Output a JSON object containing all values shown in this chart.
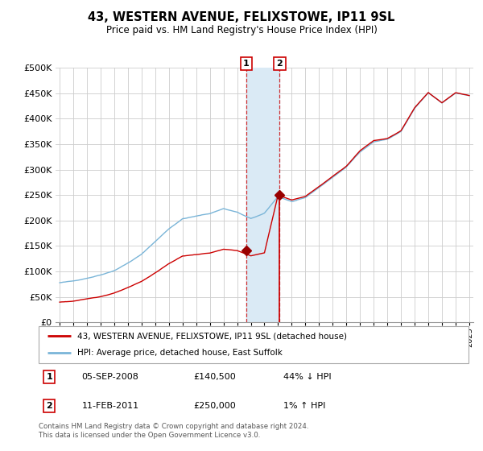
{
  "title": "43, WESTERN AVENUE, FELIXSTOWE, IP11 9SL",
  "subtitle": "Price paid vs. HM Land Registry's House Price Index (HPI)",
  "legend_line1": "43, WESTERN AVENUE, FELIXSTOWE, IP11 9SL (detached house)",
  "legend_line2": "HPI: Average price, detached house, East Suffolk",
  "table_rows": [
    [
      "1",
      "05-SEP-2008",
      "£140,500",
      "44% ↓ HPI"
    ],
    [
      "2",
      "11-FEB-2011",
      "£250,000",
      "1% ↑ HPI"
    ]
  ],
  "footer": "Contains HM Land Registry data © Crown copyright and database right 2024.\nThis data is licensed under the Open Government Licence v3.0.",
  "hpi_color": "#7ab5d8",
  "price_color": "#cc0000",
  "marker_color": "#990000",
  "annotation_bg": "#daeaf5",
  "ylim": [
    0,
    500000
  ],
  "yticks": [
    0,
    50000,
    100000,
    150000,
    200000,
    250000,
    300000,
    350000,
    400000,
    450000,
    500000
  ],
  "ytick_labels": [
    "£0",
    "£50K",
    "£100K",
    "£150K",
    "£200K",
    "£250K",
    "£300K",
    "£350K",
    "£400K",
    "£450K",
    "£500K"
  ],
  "sale1_year": 2008.67,
  "sale1_price": 140500,
  "sale2_year": 2011.12,
  "sale2_price": 250000,
  "xmin": 1995,
  "xmax": 2025
}
